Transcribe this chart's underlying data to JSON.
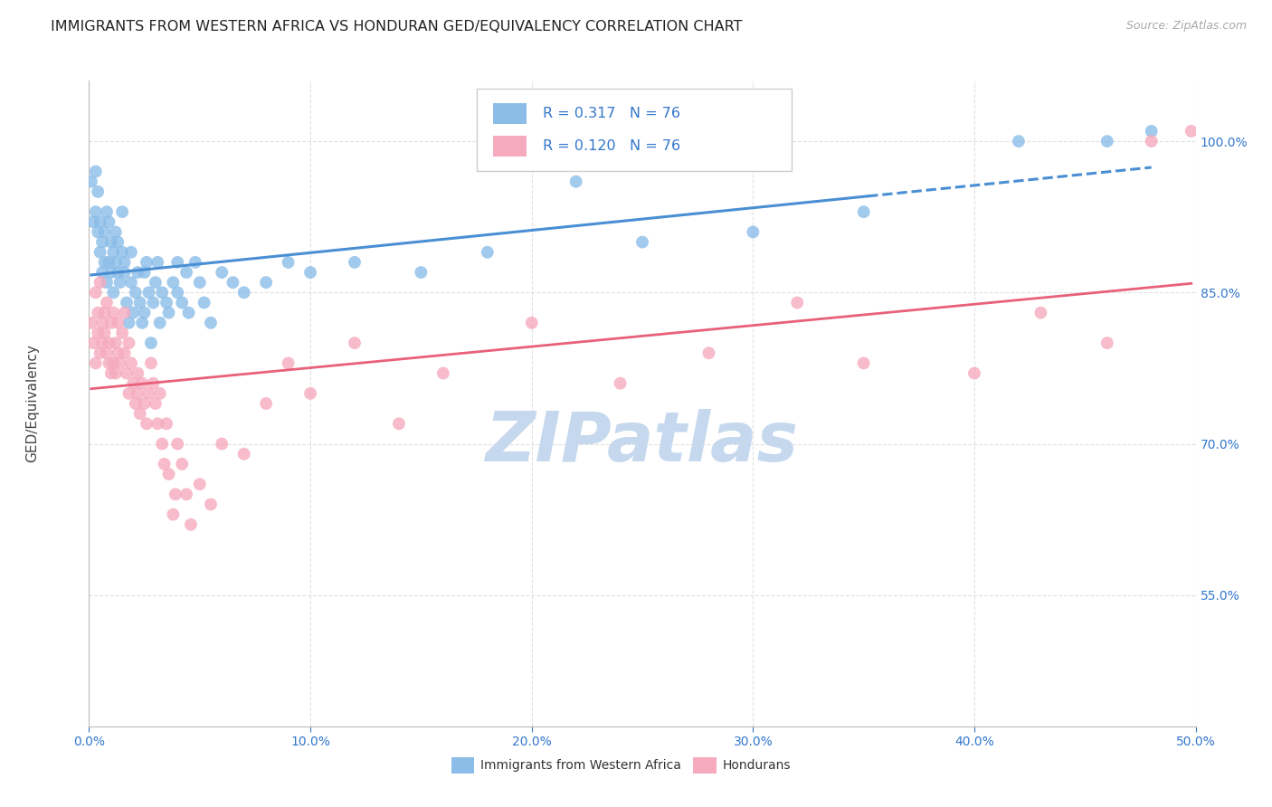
{
  "title": "IMMIGRANTS FROM WESTERN AFRICA VS HONDURAN GED/EQUIVALENCY CORRELATION CHART",
  "source": "Source: ZipAtlas.com",
  "ylabel": "GED/Equivalency",
  "R1": 0.317,
  "N1": 76,
  "R2": 0.12,
  "N2": 76,
  "xlim": [
    0.0,
    0.5
  ],
  "ylim": [
    0.42,
    1.06
  ],
  "xticks": [
    0.0,
    0.1,
    0.2,
    0.3,
    0.4,
    0.5
  ],
  "xtick_labels": [
    "0.0%",
    "10.0%",
    "20.0%",
    "30.0%",
    "40.0%",
    "50.0%"
  ],
  "yticks": [
    0.55,
    0.7,
    0.85,
    1.0
  ],
  "ytick_labels": [
    "55.0%",
    "70.0%",
    "85.0%",
    "100.0%"
  ],
  "blue_color": "#8BBDE8",
  "pink_color": "#F5AABE",
  "blue_line_color": "#4A8FD4",
  "pink_line_color": "#E8607A",
  "legend_label1": "Immigrants from Western Africa",
  "legend_label2": "Hondurans",
  "title_fontsize": 11.5,
  "source_fontsize": 9,
  "tick_color": "#3377CC",
  "grid_color": "#DDDDDD",
  "grid_style": "--",
  "watermark": "ZIPatlas",
  "watermark_color": "#C5D8EE",
  "watermark_fontsize": 55,
  "blue_x": [
    0.001,
    0.002,
    0.003,
    0.003,
    0.004,
    0.004,
    0.005,
    0.005,
    0.006,
    0.006,
    0.007,
    0.007,
    0.008,
    0.008,
    0.009,
    0.009,
    0.01,
    0.01,
    0.011,
    0.011,
    0.012,
    0.012,
    0.013,
    0.013,
    0.014,
    0.015,
    0.015,
    0.016,
    0.016,
    0.017,
    0.018,
    0.019,
    0.019,
    0.02,
    0.021,
    0.022,
    0.023,
    0.024,
    0.025,
    0.025,
    0.026,
    0.027,
    0.028,
    0.029,
    0.03,
    0.031,
    0.032,
    0.033,
    0.035,
    0.036,
    0.038,
    0.04,
    0.04,
    0.042,
    0.044,
    0.045,
    0.048,
    0.05,
    0.052,
    0.055,
    0.06,
    0.065,
    0.07,
    0.08,
    0.09,
    0.1,
    0.12,
    0.15,
    0.18,
    0.22,
    0.25,
    0.3,
    0.35,
    0.42,
    0.46,
    0.48
  ],
  "blue_y": [
    0.96,
    0.92,
    0.97,
    0.93,
    0.91,
    0.95,
    0.89,
    0.92,
    0.9,
    0.87,
    0.88,
    0.91,
    0.93,
    0.86,
    0.88,
    0.92,
    0.87,
    0.9,
    0.89,
    0.85,
    0.91,
    0.88,
    0.87,
    0.9,
    0.86,
    0.89,
    0.93,
    0.88,
    0.87,
    0.84,
    0.82,
    0.86,
    0.89,
    0.83,
    0.85,
    0.87,
    0.84,
    0.82,
    0.83,
    0.87,
    0.88,
    0.85,
    0.8,
    0.84,
    0.86,
    0.88,
    0.82,
    0.85,
    0.84,
    0.83,
    0.86,
    0.88,
    0.85,
    0.84,
    0.87,
    0.83,
    0.88,
    0.86,
    0.84,
    0.82,
    0.87,
    0.86,
    0.85,
    0.86,
    0.88,
    0.87,
    0.88,
    0.87,
    0.89,
    0.96,
    0.9,
    0.91,
    0.93,
    1.0,
    1.0,
    1.01
  ],
  "pink_x": [
    0.001,
    0.002,
    0.003,
    0.003,
    0.004,
    0.004,
    0.005,
    0.005,
    0.006,
    0.006,
    0.007,
    0.007,
    0.008,
    0.008,
    0.009,
    0.009,
    0.01,
    0.01,
    0.011,
    0.011,
    0.012,
    0.012,
    0.013,
    0.013,
    0.014,
    0.015,
    0.016,
    0.016,
    0.017,
    0.018,
    0.018,
    0.019,
    0.02,
    0.021,
    0.022,
    0.022,
    0.023,
    0.024,
    0.025,
    0.026,
    0.027,
    0.028,
    0.029,
    0.03,
    0.031,
    0.032,
    0.033,
    0.034,
    0.035,
    0.036,
    0.038,
    0.039,
    0.04,
    0.042,
    0.044,
    0.046,
    0.05,
    0.055,
    0.06,
    0.07,
    0.08,
    0.09,
    0.1,
    0.12,
    0.14,
    0.16,
    0.2,
    0.24,
    0.28,
    0.32,
    0.35,
    0.4,
    0.43,
    0.46,
    0.48,
    0.498
  ],
  "pink_y": [
    0.82,
    0.8,
    0.85,
    0.78,
    0.83,
    0.81,
    0.86,
    0.79,
    0.82,
    0.8,
    0.83,
    0.81,
    0.79,
    0.84,
    0.78,
    0.8,
    0.82,
    0.77,
    0.83,
    0.78,
    0.8,
    0.77,
    0.82,
    0.79,
    0.78,
    0.81,
    0.79,
    0.83,
    0.77,
    0.8,
    0.75,
    0.78,
    0.76,
    0.74,
    0.77,
    0.75,
    0.73,
    0.76,
    0.74,
    0.72,
    0.75,
    0.78,
    0.76,
    0.74,
    0.72,
    0.75,
    0.7,
    0.68,
    0.72,
    0.67,
    0.63,
    0.65,
    0.7,
    0.68,
    0.65,
    0.62,
    0.66,
    0.64,
    0.7,
    0.69,
    0.74,
    0.78,
    0.75,
    0.8,
    0.72,
    0.77,
    0.82,
    0.76,
    0.79,
    0.84,
    0.78,
    0.77,
    0.83,
    0.8,
    1.0,
    1.01
  ]
}
